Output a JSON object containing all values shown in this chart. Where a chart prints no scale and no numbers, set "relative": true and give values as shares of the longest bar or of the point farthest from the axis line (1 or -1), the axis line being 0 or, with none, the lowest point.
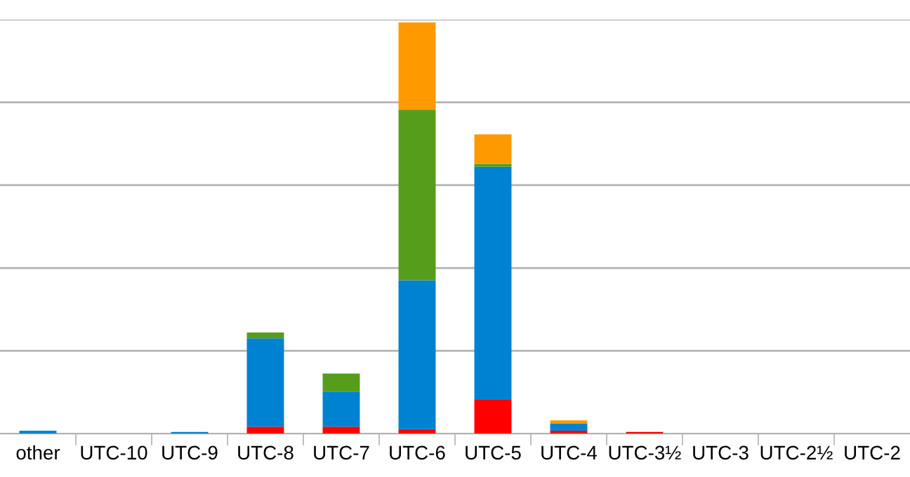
{
  "chart_data": {
    "type": "bar",
    "stacked": true,
    "relative": true,
    "grid": "y",
    "categories": [
      "other",
      "UTC-10",
      "UTC-9",
      "UTC-8",
      "UTC-7",
      "UTC-6",
      "UTC-5",
      "UTC-4",
      "UTC-3½",
      "UTC-3",
      "UTC-2½",
      "UTC-2"
    ],
    "series": [
      {
        "color": "#ff0000",
        "values": [
          0,
          0,
          0,
          0.017,
          0.017,
          0.011,
          0.082,
          0.007,
          0.004,
          0,
          0,
          0
        ]
      },
      {
        "color": "#0082d2",
        "values": [
          0.007,
          0,
          0.004,
          0.215,
          0.085,
          0.362,
          0.567,
          0.018,
          0,
          0,
          0,
          0
        ]
      },
      {
        "color": "#579d1c",
        "values": [
          0,
          0,
          0,
          0.014,
          0.044,
          0.415,
          0.007,
          0,
          0,
          0,
          0,
          0
        ]
      },
      {
        "color": "#ff9900",
        "values": [
          0,
          0,
          0,
          0,
          0,
          0.212,
          0.072,
          0.007,
          0,
          0,
          0,
          0
        ]
      }
    ]
  }
}
